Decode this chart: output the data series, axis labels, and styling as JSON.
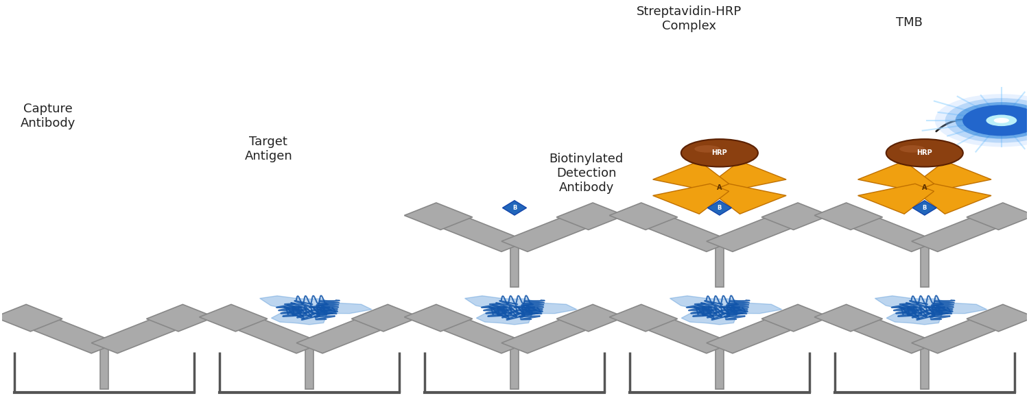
{
  "background_color": "#ffffff",
  "colors": {
    "antibody_gray": "#aaaaaa",
    "antibody_outline": "#888888",
    "antigen_blue": "#2277cc",
    "antigen_dark": "#1155aa",
    "biotin_blue": "#2266bb",
    "streptavidin_orange": "#f0a010",
    "streptavidin_dark": "#c07000",
    "hrp_brown": "#8B4010",
    "hrp_light": "#b06030",
    "tmb_center": "#ffffff",
    "tmb_mid": "#44ccff",
    "tmb_outer": "#2255dd",
    "well_color": "#555555",
    "text_color": "#222222",
    "arrow_color": "#222222"
  },
  "panels": [
    0.1,
    0.3,
    0.5,
    0.7,
    0.9
  ],
  "figsize": [
    15,
    6
  ]
}
